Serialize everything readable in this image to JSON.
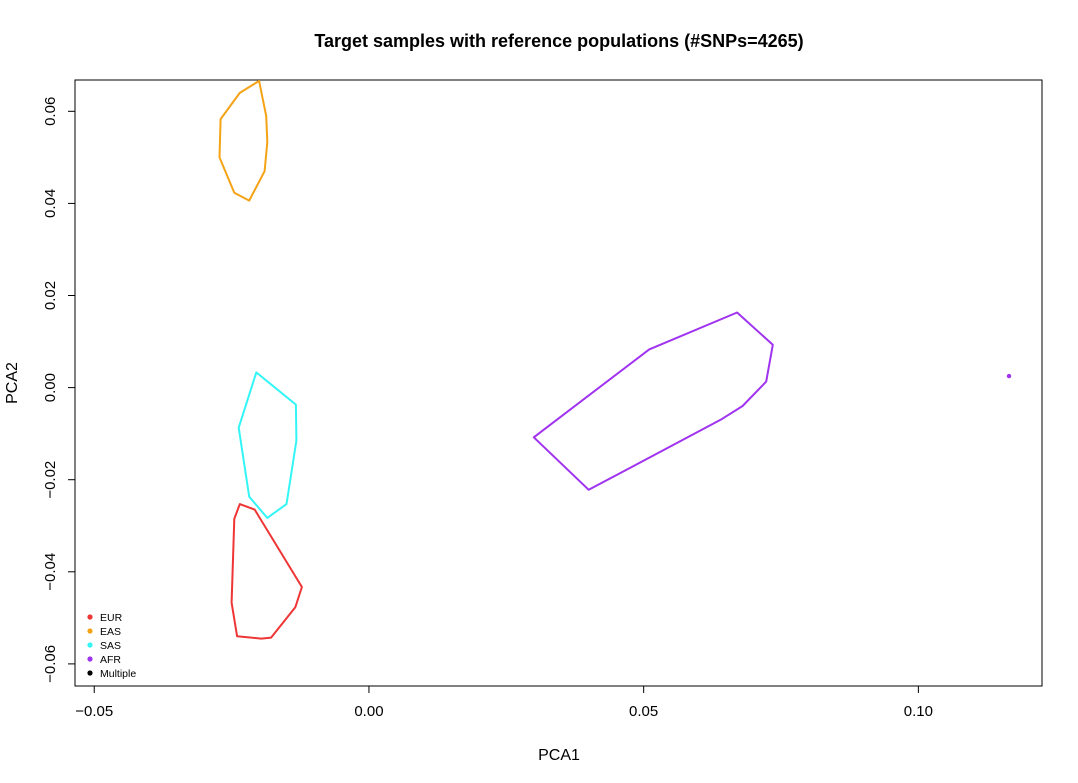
{
  "chart_data": {
    "type": "scatter",
    "title": "Target samples with reference populations (#SNPs=4265)",
    "xlabel": "PCA1",
    "ylabel": "PCA2",
    "xlim": [
      -0.0535,
      0.1225
    ],
    "ylim": [
      -0.0648,
      0.0668
    ],
    "x_ticks": [
      -0.05,
      0.0,
      0.05,
      0.1
    ],
    "x_tick_labels": [
      "−0.05",
      "0.00",
      "0.05",
      "0.10"
    ],
    "y_ticks": [
      -0.06,
      -0.04,
      -0.02,
      0.0,
      0.02,
      0.04,
      0.06
    ],
    "y_tick_labels": [
      "−0.06",
      "−0.04",
      "−0.02",
      "0.00",
      "0.02",
      "0.04",
      "0.06"
    ],
    "grid": false,
    "legend_position": "bottom-left",
    "legend": [
      {
        "label": "EUR",
        "color": "#ef3535"
      },
      {
        "label": "EAS",
        "color": "#f5a316"
      },
      {
        "label": "SAS",
        "color": "#33f5f5"
      },
      {
        "label": "AFR",
        "color": "#a033f0"
      },
      {
        "label": "Multiple",
        "color": "#000000"
      }
    ],
    "hulls": [
      {
        "name": "EUR",
        "color": "#ef3535",
        "points": [
          [
            -0.0235,
            -0.0253
          ],
          [
            -0.0208,
            -0.0265
          ],
          [
            -0.0122,
            -0.0433
          ],
          [
            -0.0134,
            -0.0477
          ],
          [
            -0.0178,
            -0.0543
          ],
          [
            -0.0196,
            -0.0545
          ],
          [
            -0.024,
            -0.054
          ],
          [
            -0.025,
            -0.0467
          ],
          [
            -0.0245,
            -0.0285
          ]
        ]
      },
      {
        "name": "EAS",
        "color": "#f5a316",
        "points": [
          [
            -0.02,
            0.0666
          ],
          [
            -0.0187,
            0.059
          ],
          [
            -0.0185,
            0.0533
          ],
          [
            -0.019,
            0.047
          ],
          [
            -0.0218,
            0.0406
          ],
          [
            -0.0245,
            0.0423
          ],
          [
            -0.0272,
            0.05
          ],
          [
            -0.027,
            0.0583
          ],
          [
            -0.0235,
            0.064
          ]
        ]
      },
      {
        "name": "SAS",
        "color": "#33f5f5",
        "points": [
          [
            -0.0205,
            0.0033
          ],
          [
            -0.0133,
            -0.0037
          ],
          [
            -0.0132,
            -0.0115
          ],
          [
            -0.015,
            -0.0253
          ],
          [
            -0.0185,
            -0.0283
          ],
          [
            -0.0218,
            -0.0237
          ],
          [
            -0.0237,
            -0.0087
          ]
        ]
      },
      {
        "name": "AFR",
        "color": "#a033f0",
        "points": [
          [
            0.067,
            0.0163
          ],
          [
            0.0735,
            0.0093
          ],
          [
            0.0723,
            0.0013
          ],
          [
            0.068,
            -0.004
          ],
          [
            0.064,
            -0.007
          ],
          [
            0.04,
            -0.0222
          ],
          [
            0.03,
            -0.0108
          ],
          [
            0.051,
            0.0083
          ]
        ]
      }
    ],
    "points": [
      {
        "x": 0.1165,
        "y": 0.0025,
        "color": "#a033f0"
      }
    ]
  }
}
